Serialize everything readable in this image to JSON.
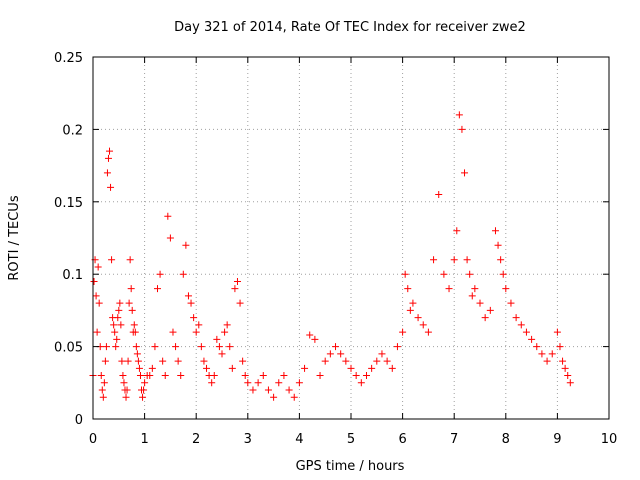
{
  "chart_data": {
    "type": "scatter",
    "title": "Day 321 of 2014, Rate Of TEC Index for receiver zwe2",
    "xlabel": "GPS time / hours",
    "ylabel": "ROTI / TECUs",
    "xlim": [
      0,
      10
    ],
    "ylim": [
      0,
      0.25
    ],
    "x_ticks": [
      0,
      1,
      2,
      3,
      4,
      5,
      6,
      7,
      8,
      9,
      10
    ],
    "x_tick_labels": [
      "0",
      "1",
      "2",
      "3",
      "4",
      "5",
      "6",
      "7",
      "8",
      "9",
      "10"
    ],
    "y_ticks": [
      0,
      0.05,
      0.1,
      0.15,
      0.2,
      0.25
    ],
    "y_tick_labels": [
      "0",
      "0.05",
      "0.1",
      "0.15",
      "0.2",
      "0.25"
    ],
    "grid": true,
    "legend": "none",
    "series": [
      {
        "name": "ROTI",
        "color": "#ff0000",
        "marker": "plus",
        "x": [
          0.0,
          0.02,
          0.04,
          0.06,
          0.08,
          0.1,
          0.12,
          0.14,
          0.16,
          0.18,
          0.2,
          0.22,
          0.24,
          0.26,
          0.28,
          0.3,
          0.32,
          0.34,
          0.36,
          0.38,
          0.4,
          0.42,
          0.44,
          0.46,
          0.48,
          0.5,
          0.52,
          0.54,
          0.56,
          0.58,
          0.6,
          0.62,
          0.64,
          0.66,
          0.68,
          0.7,
          0.72,
          0.74,
          0.76,
          0.78,
          0.8,
          0.82,
          0.84,
          0.86,
          0.88,
          0.9,
          0.92,
          0.94,
          0.96,
          0.98,
          1.0,
          1.05,
          1.1,
          1.15,
          1.2,
          1.25,
          1.3,
          1.35,
          1.4,
          1.45,
          1.5,
          1.55,
          1.6,
          1.65,
          1.7,
          1.75,
          1.8,
          1.85,
          1.9,
          1.95,
          2.0,
          2.05,
          2.1,
          2.15,
          2.2,
          2.25,
          2.3,
          2.35,
          2.4,
          2.45,
          2.5,
          2.55,
          2.6,
          2.65,
          2.7,
          2.75,
          2.8,
          2.85,
          2.9,
          2.95,
          3.0,
          3.1,
          3.2,
          3.3,
          3.4,
          3.5,
          3.6,
          3.7,
          3.8,
          3.9,
          4.0,
          4.1,
          4.2,
          4.3,
          4.4,
          4.5,
          4.6,
          4.7,
          4.8,
          4.9,
          5.0,
          5.1,
          5.2,
          5.3,
          5.4,
          5.5,
          5.6,
          5.7,
          5.8,
          5.9,
          6.0,
          6.05,
          6.1,
          6.15,
          6.2,
          6.3,
          6.4,
          6.5,
          6.6,
          6.7,
          6.8,
          6.9,
          7.0,
          7.05,
          7.1,
          7.15,
          7.2,
          7.25,
          7.3,
          7.35,
          7.4,
          7.5,
          7.6,
          7.7,
          7.8,
          7.85,
          7.9,
          7.95,
          8.0,
          8.1,
          8.2,
          8.3,
          8.4,
          8.5,
          8.6,
          8.7,
          8.8,
          8.9,
          9.0,
          9.05,
          9.1,
          9.15,
          9.2,
          9.25
        ],
        "y": [
          0.03,
          0.095,
          0.11,
          0.085,
          0.06,
          0.105,
          0.08,
          0.05,
          0.03,
          0.02,
          0.015,
          0.025,
          0.04,
          0.05,
          0.17,
          0.18,
          0.185,
          0.16,
          0.11,
          0.07,
          0.065,
          0.06,
          0.05,
          0.055,
          0.07,
          0.075,
          0.08,
          0.065,
          0.04,
          0.03,
          0.025,
          0.02,
          0.015,
          0.02,
          0.04,
          0.08,
          0.11,
          0.09,
          0.075,
          0.06,
          0.065,
          0.06,
          0.05,
          0.045,
          0.04,
          0.035,
          0.03,
          0.02,
          0.015,
          0.02,
          0.025,
          0.03,
          0.03,
          0.035,
          0.05,
          0.09,
          0.1,
          0.04,
          0.03,
          0.14,
          0.125,
          0.06,
          0.05,
          0.04,
          0.03,
          0.1,
          0.12,
          0.085,
          0.08,
          0.07,
          0.06,
          0.065,
          0.05,
          0.04,
          0.035,
          0.03,
          0.025,
          0.03,
          0.055,
          0.05,
          0.045,
          0.06,
          0.065,
          0.05,
          0.035,
          0.09,
          0.095,
          0.08,
          0.04,
          0.03,
          0.025,
          0.02,
          0.025,
          0.03,
          0.02,
          0.015,
          0.025,
          0.03,
          0.02,
          0.015,
          0.025,
          0.035,
          0.058,
          0.055,
          0.03,
          0.04,
          0.045,
          0.05,
          0.045,
          0.04,
          0.035,
          0.03,
          0.025,
          0.03,
          0.035,
          0.04,
          0.045,
          0.04,
          0.035,
          0.05,
          0.06,
          0.1,
          0.09,
          0.075,
          0.08,
          0.07,
          0.065,
          0.06,
          0.11,
          0.155,
          0.1,
          0.09,
          0.11,
          0.13,
          0.21,
          0.2,
          0.17,
          0.11,
          0.1,
          0.085,
          0.09,
          0.08,
          0.07,
          0.075,
          0.13,
          0.12,
          0.11,
          0.1,
          0.09,
          0.08,
          0.07,
          0.065,
          0.06,
          0.055,
          0.05,
          0.045,
          0.04,
          0.045,
          0.06,
          0.05,
          0.04,
          0.035,
          0.03,
          0.025
        ]
      }
    ]
  }
}
